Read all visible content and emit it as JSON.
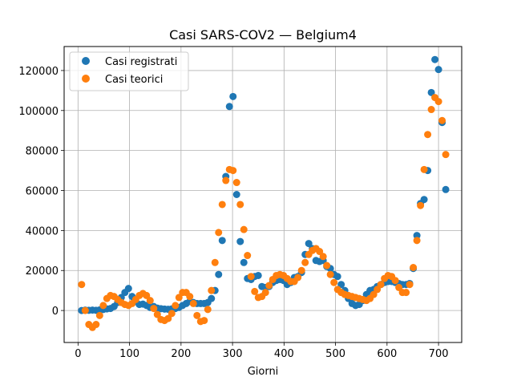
{
  "chart_data": {
    "type": "scatter",
    "title": "Casi SARS-COV2 — Belgium4",
    "xlabel": "Giorni",
    "ylabel": "",
    "xlim": [
      -27,
      745
    ],
    "ylim": [
      -16000,
      132000
    ],
    "xticks": [
      0,
      100,
      200,
      300,
      400,
      500,
      600,
      700
    ],
    "yticks": [
      0,
      20000,
      40000,
      60000,
      80000,
      100000,
      120000
    ],
    "grid": true,
    "legend": "top-left",
    "series": [
      {
        "name": "Casi registrati",
        "color": "#1f77b4",
        "points": [
          [
            7,
            0
          ],
          [
            14,
            200
          ],
          [
            21,
            100
          ],
          [
            28,
            200
          ],
          [
            35,
            100
          ],
          [
            42,
            300
          ],
          [
            49,
            500
          ],
          [
            56,
            800
          ],
          [
            63,
            1000
          ],
          [
            70,
            2000
          ],
          [
            77,
            4000
          ],
          [
            84,
            6500
          ],
          [
            91,
            9000
          ],
          [
            98,
            11000
          ],
          [
            105,
            7000
          ],
          [
            112,
            4500
          ],
          [
            119,
            3000
          ],
          [
            126,
            3200
          ],
          [
            133,
            2500
          ],
          [
            140,
            1500
          ],
          [
            147,
            2000
          ],
          [
            154,
            1200
          ],
          [
            161,
            900
          ],
          [
            168,
            700
          ],
          [
            175,
            600
          ],
          [
            182,
            800
          ],
          [
            189,
            1000
          ],
          [
            196,
            1500
          ],
          [
            203,
            2500
          ],
          [
            210,
            3500
          ],
          [
            217,
            4500
          ],
          [
            224,
            4000
          ],
          [
            231,
            3500
          ],
          [
            238,
            3500
          ],
          [
            245,
            3500
          ],
          [
            252,
            4000
          ],
          [
            259,
            6000
          ],
          [
            266,
            10000
          ],
          [
            273,
            18000
          ],
          [
            280,
            35000
          ],
          [
            287,
            67000
          ],
          [
            294,
            102000
          ],
          [
            301,
            107000
          ],
          [
            308,
            58000
          ],
          [
            315,
            34500
          ],
          [
            322,
            24000
          ],
          [
            329,
            16000
          ],
          [
            336,
            15500
          ],
          [
            343,
            17000
          ],
          [
            350,
            17500
          ],
          [
            357,
            12000
          ],
          [
            364,
            11500
          ],
          [
            371,
            12000
          ],
          [
            378,
            14000
          ],
          [
            385,
            15000
          ],
          [
            392,
            15500
          ],
          [
            399,
            15000
          ],
          [
            406,
            13000
          ],
          [
            413,
            14000
          ],
          [
            420,
            16500
          ],
          [
            427,
            17000
          ],
          [
            434,
            19000
          ],
          [
            441,
            28000
          ],
          [
            448,
            33500
          ],
          [
            455,
            31000
          ],
          [
            462,
            25000
          ],
          [
            469,
            24500
          ],
          [
            476,
            25000
          ],
          [
            483,
            22000
          ],
          [
            490,
            21000
          ],
          [
            497,
            18000
          ],
          [
            504,
            17000
          ],
          [
            511,
            13000
          ],
          [
            518,
            10000
          ],
          [
            525,
            6000
          ],
          [
            532,
            3500
          ],
          [
            539,
            2500
          ],
          [
            546,
            3000
          ],
          [
            553,
            5000
          ],
          [
            560,
            8000
          ],
          [
            567,
            10000
          ],
          [
            574,
            10500
          ],
          [
            581,
            12000
          ],
          [
            588,
            13000
          ],
          [
            595,
            14000
          ],
          [
            602,
            14500
          ],
          [
            609,
            14500
          ],
          [
            616,
            14000
          ],
          [
            623,
            13500
          ],
          [
            630,
            13000
          ],
          [
            637,
            13000
          ],
          [
            644,
            13500
          ],
          [
            651,
            21000
          ],
          [
            658,
            37500
          ],
          [
            665,
            53500
          ],
          [
            672,
            55500
          ],
          [
            679,
            70000
          ],
          [
            686,
            109000
          ],
          [
            693,
            125500
          ],
          [
            700,
            120500
          ],
          [
            707,
            94000
          ],
          [
            714,
            60500
          ]
        ]
      },
      {
        "name": "Casi teorici",
        "color": "#ff7f0e",
        "points": [
          [
            7,
            13000
          ],
          [
            14,
            0
          ],
          [
            21,
            -7000
          ],
          [
            28,
            -8500
          ],
          [
            35,
            -7000
          ],
          [
            42,
            -2500
          ],
          [
            49,
            2500
          ],
          [
            56,
            6000
          ],
          [
            63,
            7500
          ],
          [
            70,
            7000
          ],
          [
            77,
            5500
          ],
          [
            84,
            4000
          ],
          [
            91,
            3000
          ],
          [
            98,
            2500
          ],
          [
            105,
            3500
          ],
          [
            112,
            5500
          ],
          [
            119,
            7500
          ],
          [
            126,
            8500
          ],
          [
            133,
            7500
          ],
          [
            140,
            5000
          ],
          [
            147,
            1000
          ],
          [
            154,
            -2000
          ],
          [
            161,
            -4500
          ],
          [
            168,
            -5000
          ],
          [
            175,
            -4000
          ],
          [
            182,
            -1500
          ],
          [
            189,
            2500
          ],
          [
            196,
            6500
          ],
          [
            203,
            9000
          ],
          [
            210,
            9000
          ],
          [
            217,
            7000
          ],
          [
            224,
            3500
          ],
          [
            231,
            -2500
          ],
          [
            238,
            -5500
          ],
          [
            245,
            -5000
          ],
          [
            252,
            500
          ],
          [
            259,
            10000
          ],
          [
            266,
            24000
          ],
          [
            273,
            39000
          ],
          [
            280,
            53000
          ],
          [
            287,
            65000
          ],
          [
            294,
            70500
          ],
          [
            301,
            70000
          ],
          [
            308,
            64000
          ],
          [
            315,
            53000
          ],
          [
            322,
            40500
          ],
          [
            329,
            27500
          ],
          [
            336,
            17000
          ],
          [
            343,
            9500
          ],
          [
            350,
            6500
          ],
          [
            357,
            7000
          ],
          [
            364,
            9000
          ],
          [
            371,
            12500
          ],
          [
            378,
            15500
          ],
          [
            385,
            17500
          ],
          [
            392,
            18000
          ],
          [
            399,
            17500
          ],
          [
            406,
            16000
          ],
          [
            413,
            14500
          ],
          [
            420,
            14500
          ],
          [
            427,
            16500
          ],
          [
            434,
            20000
          ],
          [
            441,
            24000
          ],
          [
            448,
            28000
          ],
          [
            455,
            30000
          ],
          [
            462,
            31000
          ],
          [
            469,
            29500
          ],
          [
            476,
            27000
          ],
          [
            483,
            22500
          ],
          [
            490,
            18000
          ],
          [
            497,
            14000
          ],
          [
            504,
            10500
          ],
          [
            511,
            9000
          ],
          [
            518,
            8000
          ],
          [
            525,
            7500
          ],
          [
            532,
            7000
          ],
          [
            539,
            6500
          ],
          [
            546,
            6000
          ],
          [
            553,
            5500
          ],
          [
            560,
            5000
          ],
          [
            567,
            6000
          ],
          [
            574,
            8000
          ],
          [
            581,
            10500
          ],
          [
            588,
            13000
          ],
          [
            595,
            16000
          ],
          [
            602,
            17500
          ],
          [
            609,
            17000
          ],
          [
            616,
            15000
          ],
          [
            623,
            11500
          ],
          [
            630,
            9000
          ],
          [
            637,
            9000
          ],
          [
            644,
            13000
          ],
          [
            651,
            21500
          ],
          [
            658,
            35000
          ],
          [
            665,
            52500
          ],
          [
            672,
            70500
          ],
          [
            679,
            88000
          ],
          [
            686,
            100500
          ],
          [
            693,
            106500
          ],
          [
            700,
            104500
          ],
          [
            707,
            95000
          ],
          [
            714,
            78000
          ]
        ]
      }
    ]
  }
}
